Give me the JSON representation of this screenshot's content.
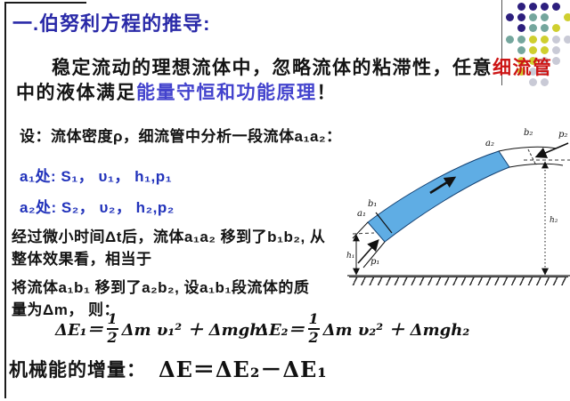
{
  "slide": {
    "title": "一.伯努利方程的推导:",
    "intro": {
      "line1_black": "稳定流动的理想流体中，忽略流体的粘滞性，任意",
      "line1_red": "细流管",
      "line2_black": "中的液体满足",
      "line2_violet": "能量守恒和功能原理",
      "line2_end": "！"
    },
    "setup_line": "设：流体密度ρ，细流管中分析一段流体a₁a₂：",
    "point_lines": {
      "a1": "a₁处:  S₁， υ₁， h₁,p₁",
      "a2": "a₂处:  S₂， υ₂， h₂,p₂"
    },
    "process_lines": {
      "l1": "经过微小时间Δt后，流体a₁a₂ 移到了b₁b₂, 从",
      "l2": "整体效果看，相当于"
    },
    "mass_lines": {
      "l1": "将流体a₁b₁ 移到了a₂b₂, 设a₁b₁段流体的质",
      "l2": "量为Δm， 则："
    },
    "equations": {
      "e1": {
        "lhs": "ΔE₁＝",
        "num": "1",
        "den": "2",
        "rhs": "Δm υ₁² ＋ Δmgh₁"
      },
      "e2": {
        "lhs": "ΔE₂＝",
        "num": "1",
        "den": "2",
        "rhs": "Δm υ₂² ＋ Δmgh₂"
      }
    },
    "result": {
      "label": "机械能的增量：",
      "formula": "ΔE＝ΔE₂－ΔE₁"
    }
  },
  "diagram": {
    "labels": {
      "a1": "a₁",
      "b1": "b₁",
      "p1": "p₁",
      "a2": "a₂",
      "b2": "b₂",
      "p2": "p₂",
      "h1": "h₁",
      "h2": "h₂"
    },
    "tube_fill": "#5fade4"
  },
  "colors": {
    "title_blue": "#2a2aa8",
    "accent_red": "#cc1414",
    "accent_violet": "#4343cd",
    "point_blue": "#2233bb"
  },
  "decoration": {
    "dot_colors": {
      "N": "#2d1f7e",
      "T": "#74a69d",
      "Y": "#cfcf2f",
      "G": "#c9cad6"
    },
    "dot_rows": [
      ".NNNN.",
      "NNTT.Y",
      ".NTTY.",
      "TTYYGG",
      ".TYYG.",
      ".YYGG.",
      ".YGG..",
      "..GG.."
    ]
  }
}
